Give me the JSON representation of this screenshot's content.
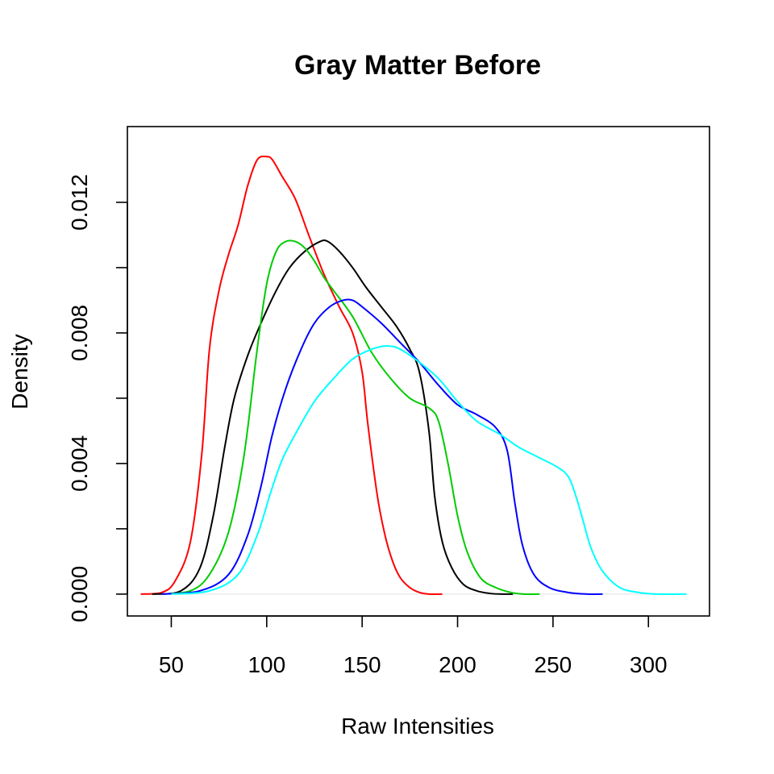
{
  "chart_data": {
    "type": "line",
    "title": "Gray Matter Before",
    "xlabel": "Raw Intensities",
    "ylabel": "Density",
    "xlim": [
      27,
      332
    ],
    "ylim": [
      -0.00067,
      0.01432
    ],
    "x_ticks": [
      50,
      100,
      150,
      200,
      250,
      300
    ],
    "x_tick_labels": [
      "50",
      "100",
      "150",
      "200",
      "250",
      "300"
    ],
    "y_ticks": [
      0.0,
      0.002,
      0.004,
      0.006,
      0.008,
      0.01,
      0.012
    ],
    "y_tick_labels": [
      "0.000",
      "",
      "0.004",
      "",
      "0.008",
      "",
      "0.012"
    ],
    "grid": false,
    "legend": "none",
    "series": [
      {
        "color": "#ff0000",
        "x": [
          34,
          45,
          52,
          60,
          66,
          70,
          75,
          80,
          85,
          90,
          95,
          100,
          103,
          108,
          115,
          122,
          130,
          138,
          145,
          150,
          153,
          158,
          162,
          166,
          170,
          175,
          180,
          185,
          192
        ],
        "y": [
          0.0,
          5e-05,
          0.0004,
          0.0016,
          0.0043,
          0.0075,
          0.0093,
          0.0104,
          0.0113,
          0.0125,
          0.0133,
          0.0134,
          0.0133,
          0.0128,
          0.0121,
          0.011,
          0.0098,
          0.0088,
          0.008,
          0.0068,
          0.0052,
          0.003,
          0.0018,
          0.001,
          0.0005,
          0.0002,
          5e-05,
          0.0,
          0.0
        ]
      },
      {
        "color": "#000000",
        "x": [
          40,
          55,
          65,
          72,
          78,
          83,
          90,
          97,
          105,
          112,
          120,
          128,
          132,
          138,
          145,
          152,
          160,
          168,
          175,
          180,
          185,
          188,
          192,
          197,
          203,
          210,
          217,
          223,
          229
        ],
        "y": [
          0.0,
          0.0001,
          0.0008,
          0.0024,
          0.0045,
          0.006,
          0.0073,
          0.0083,
          0.0093,
          0.01,
          0.0105,
          0.0108,
          0.0108,
          0.0105,
          0.01,
          0.0094,
          0.0088,
          0.0082,
          0.0075,
          0.0068,
          0.005,
          0.003,
          0.0016,
          0.0008,
          0.0003,
          0.0001,
          2e-05,
          0.0,
          0.0
        ]
      },
      {
        "color": "#00cc00",
        "x": [
          45,
          60,
          70,
          80,
          88,
          95,
          100,
          105,
          110,
          115,
          120,
          125,
          130,
          135,
          145,
          155,
          165,
          175,
          185,
          190,
          195,
          200,
          205,
          212,
          220,
          228,
          235,
          243
        ],
        "y": [
          0.0,
          0.0001,
          0.0006,
          0.0019,
          0.0042,
          0.0075,
          0.0095,
          0.0105,
          0.0108,
          0.0108,
          0.0106,
          0.0102,
          0.0097,
          0.0093,
          0.0085,
          0.0074,
          0.0066,
          0.006,
          0.0057,
          0.0053,
          0.004,
          0.0024,
          0.0013,
          0.0005,
          0.0002,
          5e-05,
          0.0,
          0.0
        ]
      },
      {
        "color": "#0000ff",
        "x": [
          45,
          65,
          80,
          90,
          97,
          103,
          110,
          118,
          125,
          133,
          140,
          145,
          150,
          160,
          170,
          180,
          190,
          200,
          210,
          220,
          226,
          230,
          234,
          240,
          248,
          258,
          268,
          276
        ],
        "y": [
          0.0,
          0.0001,
          0.0006,
          0.0018,
          0.0033,
          0.0049,
          0.0063,
          0.0075,
          0.0083,
          0.0088,
          0.009,
          0.009,
          0.0088,
          0.0083,
          0.0077,
          0.0071,
          0.0064,
          0.0058,
          0.0055,
          0.0051,
          0.0044,
          0.0028,
          0.0015,
          0.0006,
          0.0002,
          5e-05,
          0.0,
          0.0
        ]
      },
      {
        "color": "#00ffff",
        "x": [
          50,
          70,
          85,
          95,
          102,
          108,
          115,
          125,
          135,
          145,
          155,
          163,
          170,
          180,
          190,
          200,
          210,
          222,
          232,
          242,
          252,
          258,
          262,
          266,
          270,
          276,
          285,
          295,
          305,
          320
        ],
        "y": [
          0.0,
          0.0001,
          0.0006,
          0.0018,
          0.0031,
          0.0041,
          0.0049,
          0.0059,
          0.0066,
          0.0072,
          0.0075,
          0.0076,
          0.0075,
          0.0071,
          0.0066,
          0.0059,
          0.0053,
          0.0049,
          0.0045,
          0.0042,
          0.0039,
          0.0036,
          0.003,
          0.0022,
          0.0014,
          0.0007,
          0.0002,
          5e-05,
          0.0,
          0.0
        ]
      }
    ]
  }
}
